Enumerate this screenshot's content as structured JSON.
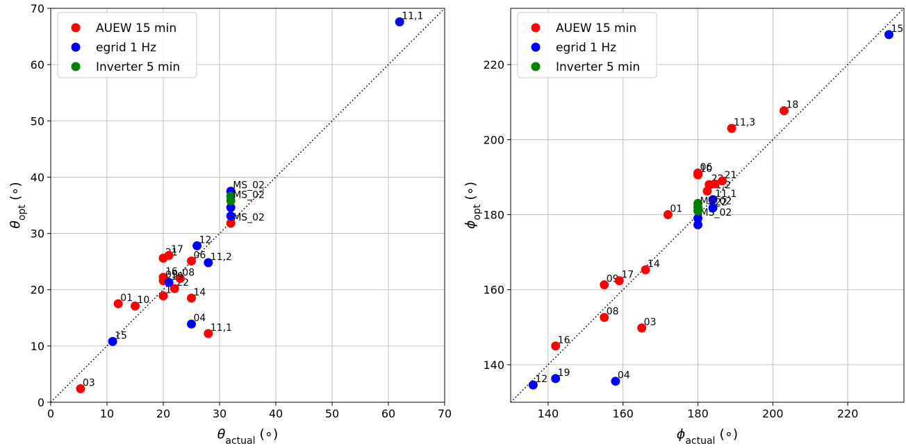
{
  "legend": [
    {
      "label": "AUEW 15 min",
      "color": "#ff0000"
    },
    {
      "label": "egrid 1 Hz",
      "color": "#0000ff"
    },
    {
      "label": "Inverter 5 min",
      "color": "#008000"
    }
  ],
  "chart_data": [
    {
      "type": "scatter",
      "xlabel": "θactual (∘)",
      "ylabel": "θopt (∘)",
      "xlim": [
        0,
        70
      ],
      "ylim": [
        0,
        70
      ],
      "xticks": [
        0,
        10,
        20,
        30,
        40,
        50,
        60,
        70
      ],
      "yticks": [
        0,
        10,
        20,
        30,
        40,
        50,
        60,
        70
      ],
      "grid": true,
      "diagonal": true,
      "legend_position": "top-left",
      "series": [
        {
          "name": "AUEW 15 min",
          "color": "#ff0000",
          "points": [
            {
              "x": 5.3,
              "y": 2.4,
              "label": "03"
            },
            {
              "x": 12,
              "y": 17.5,
              "label": "01"
            },
            {
              "x": 15,
              "y": 17.1,
              "label": "10"
            },
            {
              "x": 20,
              "y": 25.6,
              "label": "21"
            },
            {
              "x": 21,
              "y": 26.1,
              "label": "17"
            },
            {
              "x": 20,
              "y": 22.2,
              "label": "16"
            },
            {
              "x": 20,
              "y": 21.6,
              "label": "09"
            },
            {
              "x": 20,
              "y": 18.9,
              "label": "18"
            },
            {
              "x": 22,
              "y": 20.2,
              "label": "22"
            },
            {
              "x": 23,
              "y": 22.0,
              "label": "08"
            },
            {
              "x": 25,
              "y": 25.1,
              "label": "06"
            },
            {
              "x": 25,
              "y": 18.5,
              "label": "14"
            },
            {
              "x": 28,
              "y": 12.2,
              "label": "11,1"
            },
            {
              "x": 32,
              "y": 31.8,
              "label": "MS_02"
            }
          ]
        },
        {
          "name": "egrid 1 Hz",
          "color": "#0000ff",
          "points": [
            {
              "x": 62,
              "y": 67.6,
              "label": "11,1"
            },
            {
              "x": 11,
              "y": 10.8,
              "label": "15"
            },
            {
              "x": 21,
              "y": 21.3,
              "label": "19"
            },
            {
              "x": 25,
              "y": 13.9,
              "label": "04"
            },
            {
              "x": 26,
              "y": 27.8,
              "label": "12"
            },
            {
              "x": 28,
              "y": 24.8,
              "label": "11,2"
            },
            {
              "x": 32,
              "y": 37.5,
              "label": "MS_02"
            },
            {
              "x": 32,
              "y": 34.6,
              "label": ""
            },
            {
              "x": 32,
              "y": 33.1,
              "label": ""
            }
          ]
        },
        {
          "name": "Inverter 5 min",
          "color": "#008000",
          "points": [
            {
              "x": 32,
              "y": 36.6,
              "label": ""
            },
            {
              "x": 32,
              "y": 35.8,
              "label": "MS_02"
            }
          ]
        }
      ]
    },
    {
      "type": "scatter",
      "xlabel": "ϕactual (∘)",
      "ylabel": "ϕopt (∘)",
      "xlim": [
        130,
        235
      ],
      "ylim": [
        130,
        235
      ],
      "xticks": [
        140,
        160,
        180,
        200,
        220
      ],
      "yticks": [
        140,
        160,
        180,
        200,
        220
      ],
      "grid": true,
      "diagonal": true,
      "legend_position": "top-left",
      "series": [
        {
          "name": "AUEW 15 min",
          "color": "#ff0000",
          "points": [
            {
              "x": 142,
              "y": 145,
              "label": "16"
            },
            {
              "x": 155,
              "y": 152.6,
              "label": "08"
            },
            {
              "x": 155,
              "y": 161.3,
              "label": "09"
            },
            {
              "x": 159,
              "y": 162.4,
              "label": "17"
            },
            {
              "x": 165,
              "y": 149.8,
              "label": "03"
            },
            {
              "x": 166,
              "y": 165.3,
              "label": "14"
            },
            {
              "x": 172,
              "y": 180,
              "label": "01"
            },
            {
              "x": 180,
              "y": 191.1,
              "label": "06"
            },
            {
              "x": 180,
              "y": 190.6,
              "label": "10"
            },
            {
              "x": 183,
              "y": 188,
              "label": "22"
            },
            {
              "x": 182.5,
              "y": 186.3,
              "label": "11,2"
            },
            {
              "x": 186.5,
              "y": 189,
              "label": "21"
            },
            {
              "x": 184.5,
              "y": 188.2,
              "label": ""
            },
            {
              "x": 189,
              "y": 203,
              "label": "11,3"
            },
            {
              "x": 203,
              "y": 207.7,
              "label": "18"
            }
          ]
        },
        {
          "name": "egrid 1 Hz",
          "color": "#0000ff",
          "points": [
            {
              "x": 136,
              "y": 134.6,
              "label": "12"
            },
            {
              "x": 142,
              "y": 136.3,
              "label": "19"
            },
            {
              "x": 158,
              "y": 135.6,
              "label": "04"
            },
            {
              "x": 180,
              "y": 177.3,
              "label": ""
            },
            {
              "x": 180,
              "y": 179,
              "label": "MS_02"
            },
            {
              "x": 184,
              "y": 184,
              "label": "11,1"
            },
            {
              "x": 184,
              "y": 181.8,
              "label": "22"
            },
            {
              "x": 231,
              "y": 228,
              "label": "15"
            }
          ]
        },
        {
          "name": "Inverter 5 min",
          "color": "#008000",
          "points": [
            {
              "x": 180,
              "y": 183,
              "label": ""
            },
            {
              "x": 180,
              "y": 182,
              "label": "MS_02"
            },
            {
              "x": 180,
              "y": 181,
              "label": ""
            }
          ]
        }
      ]
    }
  ]
}
